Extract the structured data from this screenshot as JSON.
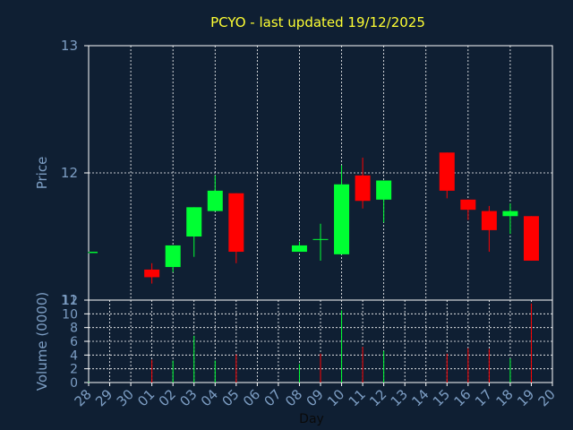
{
  "title": "PCYO - last updated 19/12/2025",
  "colors": {
    "up": "#00ff33",
    "down": "#ff0000",
    "background": "#0f1f33",
    "axis": "#ffffff",
    "text": "#7d9ec4",
    "title": "#ffff33"
  },
  "chart_data": [
    {
      "type": "candlestick",
      "ylabel": "Price",
      "ylim": [
        11.0,
        13.0
      ],
      "y_ticks": [
        "13",
        "12",
        "11"
      ],
      "grid": true,
      "candles": [
        {
          "day": "28",
          "open": 11.37,
          "high": 11.38,
          "low": 11.37,
          "close": 11.38
        },
        {
          "day": "01",
          "open": 11.24,
          "high": 11.29,
          "low": 11.13,
          "close": 11.18
        },
        {
          "day": "02",
          "open": 11.26,
          "high": 11.43,
          "low": 11.22,
          "close": 11.43
        },
        {
          "day": "03",
          "open": 11.5,
          "high": 11.73,
          "low": 11.34,
          "close": 11.73
        },
        {
          "day": "04",
          "open": 11.7,
          "high": 11.98,
          "low": 11.7,
          "close": 11.86
        },
        {
          "day": "05",
          "open": 11.84,
          "high": 11.84,
          "low": 11.29,
          "close": 11.38
        },
        {
          "day": "08",
          "open": 11.38,
          "high": 11.46,
          "low": 11.38,
          "close": 11.43
        },
        {
          "day": "09",
          "open": 11.48,
          "high": 11.6,
          "low": 11.31,
          "close": 11.48
        },
        {
          "day": "10",
          "open": 11.36,
          "high": 12.06,
          "low": 11.36,
          "close": 11.91
        },
        {
          "day": "11",
          "open": 11.98,
          "high": 12.12,
          "low": 11.72,
          "close": 11.78
        },
        {
          "day": "12",
          "open": 11.79,
          "high": 11.94,
          "low": 11.61,
          "close": 11.94
        },
        {
          "day": "15",
          "open": 12.16,
          "high": 12.16,
          "low": 11.8,
          "close": 11.86
        },
        {
          "day": "16",
          "open": 11.79,
          "high": 11.79,
          "low": 11.63,
          "close": 11.71
        },
        {
          "day": "17",
          "open": 11.7,
          "high": 11.74,
          "low": 11.38,
          "close": 11.55
        },
        {
          "day": "18",
          "open": 11.66,
          "high": 11.76,
          "low": 11.52,
          "close": 11.7
        },
        {
          "day": "19",
          "open": 11.66,
          "high": 11.66,
          "low": 11.31,
          "close": 11.31
        }
      ]
    },
    {
      "type": "bar",
      "ylabel": "Volume (0000)",
      "ylim": [
        0,
        12
      ],
      "y_ticks": [
        "12",
        "10",
        "8",
        "6",
        "4",
        "2",
        "0"
      ],
      "xlabel": "Day",
      "x_ticks": [
        "28",
        "29",
        "30",
        "01",
        "02",
        "03",
        "04",
        "05",
        "06",
        "07",
        "08",
        "09",
        "10",
        "11",
        "12",
        "13",
        "14",
        "15",
        "16",
        "17",
        "18",
        "19",
        "20"
      ],
      "grid": true,
      "bars": [
        {
          "day": "28",
          "value": 0.1,
          "dir": "up"
        },
        {
          "day": "01",
          "value": 3.3,
          "dir": "down"
        },
        {
          "day": "02",
          "value": 3.2,
          "dir": "up"
        },
        {
          "day": "03",
          "value": 6.8,
          "dir": "up"
        },
        {
          "day": "04",
          "value": 3.2,
          "dir": "up"
        },
        {
          "day": "05",
          "value": 4.1,
          "dir": "down"
        },
        {
          "day": "08",
          "value": 2.7,
          "dir": "up"
        },
        {
          "day": "09",
          "value": 4.2,
          "dir": "down"
        },
        {
          "day": "10",
          "value": 10.5,
          "dir": "up"
        },
        {
          "day": "11",
          "value": 5.2,
          "dir": "down"
        },
        {
          "day": "12",
          "value": 4.6,
          "dir": "up"
        },
        {
          "day": "15",
          "value": 4.2,
          "dir": "down"
        },
        {
          "day": "16",
          "value": 5.0,
          "dir": "down"
        },
        {
          "day": "17",
          "value": 4.9,
          "dir": "down"
        },
        {
          "day": "18",
          "value": 3.5,
          "dir": "up"
        },
        {
          "day": "19",
          "value": 11.5,
          "dir": "down"
        }
      ]
    }
  ]
}
